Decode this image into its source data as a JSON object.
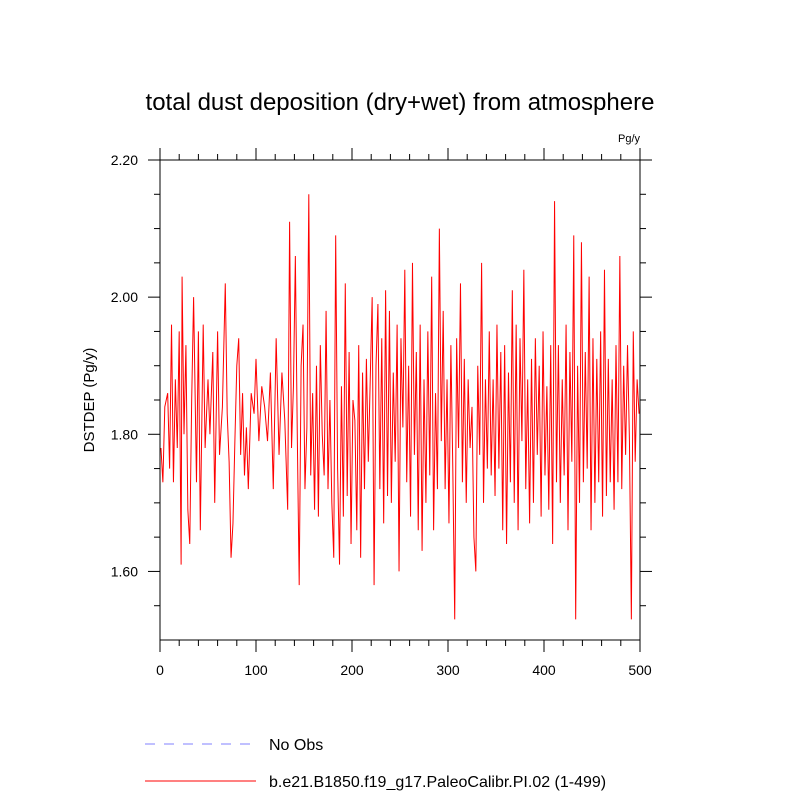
{
  "chart_data": {
    "type": "line",
    "title": "total dust deposition (dry+wet) from atmosphere",
    "units": "Pg/y",
    "xlabel": "",
    "ylabel": "DSTDEP  (Pg/y)",
    "xlim": [
      0,
      500
    ],
    "ylim": [
      1.5,
      2.2
    ],
    "x_ticks": [
      0,
      100,
      200,
      300,
      400,
      500
    ],
    "x_tick_labels": [
      "0",
      "100",
      "200",
      "300",
      "400",
      "500"
    ],
    "y_ticks": [
      1.6,
      1.8,
      2.0,
      2.2
    ],
    "y_tick_labels": [
      "1.60",
      "1.80",
      "2.00",
      "2.20"
    ],
    "legend_position": "bottom-left, below plot",
    "series": [
      {
        "name": "No Obs",
        "label": "No Obs",
        "color": "#8080ff",
        "style": "dashed",
        "x": [],
        "values": []
      },
      {
        "name": "b.e21.B1850.f19_g17.PaleoCalibr.PI.02 (1-499)",
        "label": "b.e21.B1850.f19_g17.PaleoCalibr.PI.02 (1-499)",
        "color": "#ff0000",
        "style": "solid",
        "x_start": 1,
        "keypoints": [
          [
            1,
            1.78
          ],
          [
            3,
            1.73
          ],
          [
            5,
            1.84
          ],
          [
            8,
            1.86
          ],
          [
            10,
            1.75
          ],
          [
            12,
            1.96
          ],
          [
            14,
            1.73
          ],
          [
            16,
            1.88
          ],
          [
            18,
            1.78
          ],
          [
            20,
            1.95
          ],
          [
            22,
            1.61
          ],
          [
            23,
            2.03
          ],
          [
            25,
            1.8
          ],
          [
            27,
            1.93
          ],
          [
            29,
            1.69
          ],
          [
            31,
            1.64
          ],
          [
            33,
            1.85
          ],
          [
            35,
            2.0
          ],
          [
            38,
            1.73
          ],
          [
            40,
            1.95
          ],
          [
            42,
            1.66
          ],
          [
            45,
            1.96
          ],
          [
            47,
            1.78
          ],
          [
            50,
            1.88
          ],
          [
            52,
            1.8
          ],
          [
            55,
            1.92
          ],
          [
            57,
            1.7
          ],
          [
            60,
            1.95
          ],
          [
            62,
            1.77
          ],
          [
            65,
            1.84
          ],
          [
            68,
            2.02
          ],
          [
            70,
            1.83
          ],
          [
            72,
            1.76
          ],
          [
            74,
            1.62
          ],
          [
            76,
            1.67
          ],
          [
            78,
            1.79
          ],
          [
            80,
            1.9
          ],
          [
            82,
            1.94
          ],
          [
            84,
            1.77
          ],
          [
            86,
            1.86
          ],
          [
            88,
            1.74
          ],
          [
            90,
            1.81
          ],
          [
            92,
            1.72
          ],
          [
            95,
            1.86
          ],
          [
            98,
            1.83
          ],
          [
            100,
            1.91
          ],
          [
            103,
            1.79
          ],
          [
            106,
            1.87
          ],
          [
            109,
            1.84
          ],
          [
            112,
            1.79
          ],
          [
            115,
            1.89
          ],
          [
            118,
            1.72
          ],
          [
            121,
            1.94
          ],
          [
            124,
            1.77
          ],
          [
            127,
            1.89
          ],
          [
            130,
            1.82
          ],
          [
            133,
            1.69
          ],
          [
            135,
            2.11
          ],
          [
            137,
            1.78
          ],
          [
            139,
            1.87
          ],
          [
            141,
            2.06
          ],
          [
            143,
            1.8
          ],
          [
            145,
            1.58
          ],
          [
            147,
            1.9
          ],
          [
            149,
            1.96
          ],
          [
            151,
            1.72
          ],
          [
            153,
            1.81
          ],
          [
            155,
            2.15
          ],
          [
            157,
            1.74
          ],
          [
            159,
            1.86
          ],
          [
            161,
            1.69
          ],
          [
            163,
            1.9
          ],
          [
            165,
            1.68
          ],
          [
            167,
            1.93
          ],
          [
            169,
            1.8
          ],
          [
            171,
            1.74
          ],
          [
            173,
            1.98
          ],
          [
            175,
            1.72
          ],
          [
            177,
            1.85
          ],
          [
            179,
            1.7
          ],
          [
            181,
            1.62
          ],
          [
            183,
            2.09
          ],
          [
            185,
            1.75
          ],
          [
            187,
            1.61
          ],
          [
            189,
            1.87
          ],
          [
            191,
            1.68
          ],
          [
            193,
            2.02
          ],
          [
            195,
            1.71
          ],
          [
            197,
            1.92
          ],
          [
            199,
            1.64
          ],
          [
            201,
            1.85
          ],
          [
            203,
            1.82
          ],
          [
            205,
            1.66
          ],
          [
            207,
            1.93
          ],
          [
            209,
            1.62
          ],
          [
            211,
            1.89
          ],
          [
            213,
            1.72
          ],
          [
            215,
            1.91
          ],
          [
            217,
            1.76
          ],
          [
            219,
            1.88
          ],
          [
            221,
            2.0
          ],
          [
            223,
            1.58
          ],
          [
            225,
            1.9
          ],
          [
            227,
            1.99
          ],
          [
            229,
            1.72
          ],
          [
            231,
            1.94
          ],
          [
            233,
            1.67
          ],
          [
            235,
            2.01
          ],
          [
            237,
            1.71
          ],
          [
            239,
            1.98
          ],
          [
            241,
            1.7
          ],
          [
            243,
            1.89
          ],
          [
            245,
            1.76
          ],
          [
            247,
            1.96
          ],
          [
            249,
            1.6
          ],
          [
            251,
            1.94
          ],
          [
            253,
            1.81
          ],
          [
            255,
            2.04
          ],
          [
            257,
            1.73
          ],
          [
            259,
            1.9
          ],
          [
            261,
            1.68
          ],
          [
            263,
            2.05
          ],
          [
            265,
            1.77
          ],
          [
            267,
            1.92
          ],
          [
            269,
            1.66
          ],
          [
            271,
            1.96
          ],
          [
            273,
            1.63
          ],
          [
            275,
            1.88
          ],
          [
            277,
            1.7
          ],
          [
            279,
            1.95
          ],
          [
            281,
            1.74
          ],
          [
            283,
            2.03
          ],
          [
            285,
            1.66
          ],
          [
            287,
            1.86
          ],
          [
            289,
            1.72
          ],
          [
            291,
            2.1
          ],
          [
            293,
            1.79
          ],
          [
            295,
            1.98
          ],
          [
            297,
            1.72
          ],
          [
            299,
            1.88
          ],
          [
            301,
            1.67
          ],
          [
            303,
            1.93
          ],
          [
            305,
            1.75
          ],
          [
            307,
            1.53
          ],
          [
            309,
            1.94
          ],
          [
            311,
            1.78
          ],
          [
            313,
            2.02
          ],
          [
            315,
            1.73
          ],
          [
            317,
            1.91
          ],
          [
            319,
            1.7
          ],
          [
            321,
            1.88
          ],
          [
            323,
            1.78
          ],
          [
            325,
            1.84
          ],
          [
            327,
            1.65
          ],
          [
            329,
            1.6
          ],
          [
            331,
            1.9
          ],
          [
            333,
            1.77
          ],
          [
            335,
            2.05
          ],
          [
            337,
            1.7
          ],
          [
            339,
            1.88
          ],
          [
            341,
            1.75
          ],
          [
            343,
            1.95
          ],
          [
            345,
            1.74
          ],
          [
            347,
            1.88
          ],
          [
            349,
            1.71
          ],
          [
            351,
            1.96
          ],
          [
            353,
            1.75
          ],
          [
            355,
            1.92
          ],
          [
            357,
            1.66
          ],
          [
            359,
            1.93
          ],
          [
            361,
            1.64
          ],
          [
            363,
            1.89
          ],
          [
            365,
            1.73
          ],
          [
            367,
            2.01
          ],
          [
            369,
            1.7
          ],
          [
            371,
            1.96
          ],
          [
            373,
            1.66
          ],
          [
            375,
            1.94
          ],
          [
            377,
            1.79
          ],
          [
            379,
            2.04
          ],
          [
            381,
            1.72
          ],
          [
            383,
            1.88
          ],
          [
            385,
            1.67
          ],
          [
            387,
            1.91
          ],
          [
            389,
            1.7
          ],
          [
            391,
            1.94
          ],
          [
            393,
            1.77
          ],
          [
            395,
            1.9
          ],
          [
            397,
            1.68
          ],
          [
            399,
            1.95
          ],
          [
            401,
            1.74
          ],
          [
            403,
            1.87
          ],
          [
            405,
            1.69
          ],
          [
            407,
            1.93
          ],
          [
            409,
            1.64
          ],
          [
            411,
            2.14
          ],
          [
            413,
            1.73
          ],
          [
            415,
            1.93
          ],
          [
            417,
            1.7
          ],
          [
            419,
            1.88
          ],
          [
            421,
            1.74
          ],
          [
            423,
            1.96
          ],
          [
            425,
            1.66
          ],
          [
            427,
            1.92
          ],
          [
            429,
            1.76
          ],
          [
            431,
            2.09
          ],
          [
            433,
            1.53
          ],
          [
            435,
            1.9
          ],
          [
            437,
            1.7
          ],
          [
            439,
            2.08
          ],
          [
            441,
            1.73
          ],
          [
            443,
            1.92
          ],
          [
            445,
            1.75
          ],
          [
            447,
            2.03
          ],
          [
            449,
            1.66
          ],
          [
            451,
            1.94
          ],
          [
            453,
            1.7
          ],
          [
            455,
            1.91
          ],
          [
            457,
            1.73
          ],
          [
            459,
            1.95
          ],
          [
            461,
            1.68
          ],
          [
            463,
            2.04
          ],
          [
            465,
            1.71
          ],
          [
            467,
            1.91
          ],
          [
            469,
            1.73
          ],
          [
            471,
            1.88
          ],
          [
            473,
            1.69
          ],
          [
            475,
            1.93
          ],
          [
            477,
            1.73
          ],
          [
            479,
            2.06
          ],
          [
            481,
            1.72
          ],
          [
            483,
            1.9
          ],
          [
            485,
            1.77
          ],
          [
            487,
            1.93
          ],
          [
            489,
            1.79
          ],
          [
            491,
            1.53
          ],
          [
            493,
            1.95
          ],
          [
            495,
            1.76
          ],
          [
            497,
            1.88
          ],
          [
            499,
            1.83
          ]
        ]
      }
    ]
  }
}
